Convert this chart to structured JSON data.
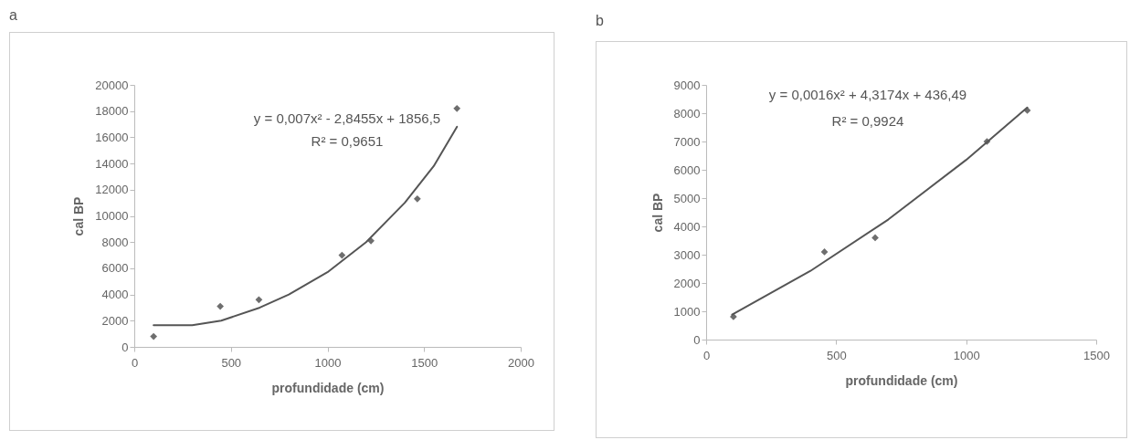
{
  "chart_data": [
    {
      "type": "scatter",
      "title": "a",
      "xlabel": "profundidade (cm)",
      "ylabel": "cal BP",
      "xlim": [
        0,
        2000
      ],
      "xticks": [
        0,
        500,
        1000,
        1500,
        2000
      ],
      "ylim": [
        0,
        20000
      ],
      "yticks": [
        0,
        2000,
        4000,
        6000,
        8000,
        10000,
        12000,
        14000,
        16000,
        18000,
        20000
      ],
      "grid": false,
      "annotations": [
        "y = 0,007x² - 2,8455x + 1856,5",
        "R² = 0,9651"
      ],
      "series": [
        {
          "marker": "diamond",
          "color": "#6e6e6e",
          "x": [
            100,
            445,
            645,
            1075,
            1225,
            1465,
            1670
          ],
          "values": [
            800,
            3100,
            3600,
            7000,
            8100,
            11300,
            18200
          ]
        },
        {
          "type": "line",
          "color": "#555555",
          "x": [
            100,
            300,
            450,
            650,
            800,
            1000,
            1200,
            1400,
            1550,
            1670
          ],
          "values": [
            1650,
            1650,
            2000,
            3000,
            4000,
            5700,
            8000,
            11000,
            13800,
            16800
          ]
        }
      ]
    },
    {
      "type": "scatter",
      "title": "b",
      "xlabel": "profundidade (cm)",
      "ylabel": "cal BP",
      "xlim": [
        0,
        1500
      ],
      "xticks": [
        0,
        500,
        1000,
        1500
      ],
      "ylim": [
        0,
        9000
      ],
      "yticks": [
        0,
        1000,
        2000,
        3000,
        4000,
        5000,
        6000,
        7000,
        8000,
        9000
      ],
      "grid": false,
      "annotations": [
        "y = 0,0016x² + 4,3174x + 436,49",
        "R² = 0,9924"
      ],
      "series": [
        {
          "marker": "diamond",
          "color": "#6e6e6e",
          "x": [
            105,
            455,
            650,
            1080,
            1235
          ],
          "values": [
            810,
            3100,
            3600,
            7000,
            8100
          ]
        },
        {
          "type": "line",
          "color": "#555555",
          "x": [
            100,
            400,
            700,
            1000,
            1235
          ],
          "values": [
            880,
            2420,
            4240,
            6350,
            8200
          ]
        }
      ]
    }
  ]
}
